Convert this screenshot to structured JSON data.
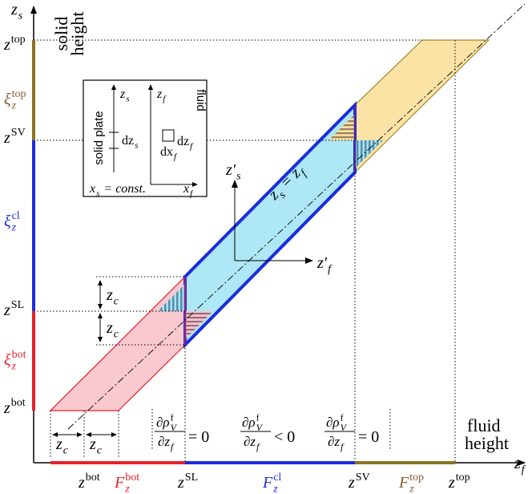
{
  "axes": {
    "y_label": [
      {
        "base": "z",
        "sub": "s"
      }
    ],
    "y_title": [
      "solid",
      "height"
    ],
    "x_label": [
      {
        "base": "z",
        "sub": "f"
      }
    ],
    "x_title": [
      "fluid",
      "height"
    ]
  },
  "left_labels": {
    "z_top": [
      {
        "base": "z",
        "sup": "top"
      }
    ],
    "xi_top": [
      {
        "base": "ξ",
        "sub": "z",
        "sup": "top"
      }
    ],
    "z_sv": [
      {
        "base": "z",
        "sup": "SV"
      }
    ],
    "xi_cl": [
      {
        "base": "ξ",
        "sub": "z",
        "sup": "cl"
      }
    ],
    "z_sl": [
      {
        "base": "z",
        "sup": "SL"
      }
    ],
    "xi_bot": [
      {
        "base": "ξ",
        "sub": "z",
        "sup": "bot"
      }
    ],
    "z_bot": [
      {
        "base": "z",
        "sup": "bot"
      }
    ]
  },
  "bottom_labels": {
    "z_bot": [
      {
        "base": "z",
        "sup": "bot"
      }
    ],
    "f_bot": [
      {
        "base": "F",
        "sub": "z",
        "sup": "bot"
      }
    ],
    "z_sl": [
      {
        "base": "z",
        "sup": "SL"
      }
    ],
    "f_cl": [
      {
        "base": "F",
        "sub": "z",
        "sup": "cl"
      }
    ],
    "z_sv": [
      {
        "base": "z",
        "sup": "SV"
      }
    ],
    "f_top": [
      {
        "base": "F",
        "sub": "z",
        "sup": "top"
      }
    ],
    "z_top": [
      {
        "base": "z",
        "sup": "top"
      }
    ]
  },
  "zc_labels": [
    [
      {
        "base": "z",
        "sub": "c"
      }
    ],
    [
      {
        "base": "z",
        "sub": "c"
      }
    ],
    [
      {
        "base": "z",
        "sub": "c"
      }
    ],
    [
      {
        "base": "z",
        "sub": "c"
      }
    ]
  ],
  "formulas": [
    {
      "num": [
        {
          "base": "∂ρ",
          "sub": "V",
          "sup": "f"
        }
      ],
      "den": [
        {
          "base": "∂z",
          "sub": "f"
        }
      ],
      "rel": "= 0"
    },
    {
      "num": [
        {
          "base": "∂ρ",
          "sub": "V",
          "sup": "f"
        }
      ],
      "den": [
        {
          "base": "∂z",
          "sub": "f"
        }
      ],
      "rel": "< 0"
    },
    {
      "num": [
        {
          "base": "∂ρ",
          "sub": "V",
          "sup": "f"
        }
      ],
      "den": [
        {
          "base": "∂z",
          "sub": "f"
        }
      ],
      "rel": "= 0"
    }
  ],
  "diagonal_label": [
    {
      "base": "z",
      "sub": "s"
    },
    {
      "base": " = z",
      "sub": "f"
    }
  ],
  "local_axes": {
    "zs_prime": [
      {
        "base": "z′",
        "sub": "s"
      }
    ],
    "zf_prime": [
      {
        "base": "z′",
        "sub": "f"
      }
    ]
  },
  "inset": {
    "solid_title": "solid plate",
    "zs": [
      {
        "base": "z",
        "sub": "s"
      }
    ],
    "dzs": [
      {
        "base": "dz",
        "sub": "s"
      }
    ],
    "xs_const": [
      {
        "base": "x",
        "sub": "s"
      },
      {
        "base": " = const."
      }
    ],
    "zf": [
      {
        "base": "z",
        "sub": "f"
      }
    ],
    "fluid_title": "fluid",
    "dzf": [
      {
        "base": "dz",
        "sub": "f"
      }
    ],
    "dxf": [
      {
        "base": "dx",
        "sub": "f"
      }
    ],
    "xf": [
      {
        "base": "x",
        "sub": "f"
      }
    ]
  }
}
